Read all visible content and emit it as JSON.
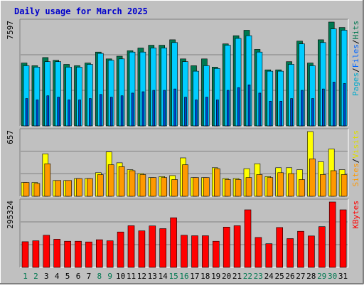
{
  "chart_data": {
    "type": "bar",
    "title": "Daily usage for March 2025",
    "colors": {
      "background": "#c0c0c0",
      "border_light": "#ffffff",
      "border_dark": "#808080",
      "grid": "#808080",
      "title": "#0000cc",
      "pages": "#007850",
      "files": "#00ccff",
      "hits": "#00aa88",
      "sites": "#ff9900",
      "visits": "#ffff00",
      "kbytes": "#ff0000",
      "weekend_label": "#007850",
      "day_label": "#000000"
    },
    "categories": [
      "1",
      "2",
      "3",
      "4",
      "5",
      "6",
      "7",
      "8",
      "9",
      "10",
      "11",
      "12",
      "13",
      "14",
      "15",
      "16",
      "17",
      "18",
      "19",
      "20",
      "21",
      "22",
      "23",
      "24",
      "25",
      "26",
      "27",
      "28",
      "29",
      "30",
      "31"
    ],
    "weekend_days": [
      "1",
      "2",
      "8",
      "9",
      "15",
      "16",
      "22",
      "23",
      "29",
      "30"
    ],
    "panels": [
      {
        "id": "hits",
        "max_label": "7597",
        "legend": [
          {
            "text": "Pages",
            "color": "#00aacc"
          },
          {
            "text": "/",
            "color": "#000000"
          },
          {
            "text": "Files",
            "color": "#0066ff"
          },
          {
            "text": "/",
            "color": "#000000"
          },
          {
            "text": "Hits",
            "color": "#007850"
          }
        ],
        "series": [
          {
            "name": "Hits",
            "values": [
              4600,
              4400,
              5000,
              4800,
              4500,
              4400,
              4600,
              5400,
              4900,
              5100,
              5500,
              5700,
              5900,
              5900,
              6300,
              4900,
              4400,
              4900,
              4300,
              6000,
              6600,
              7000,
              5600,
              4100,
              4100,
              4700,
              6200,
              4600,
              6300,
              7597,
              7200
            ]
          },
          {
            "name": "Files",
            "values": [
              4400,
              4300,
              4700,
              4700,
              4300,
              4300,
              4500,
              5300,
              4800,
              4900,
              5400,
              5400,
              5700,
              5700,
              6100,
              4700,
              4000,
              4400,
              4200,
              5900,
              6400,
              6600,
              5400,
              4000,
              4000,
              4500,
              6000,
              4400,
              6100,
              7100,
              7000
            ]
          },
          {
            "name": "Pages",
            "values": [
              2000,
              1900,
              2200,
              2100,
              1900,
              1900,
              2000,
              2300,
              2100,
              2200,
              2400,
              2500,
              2600,
              2600,
              2700,
              2100,
              1900,
              2100,
              1900,
              2600,
              2800,
              3000,
              2400,
              1800,
              1800,
              2000,
              2600,
              2000,
              2700,
              3200,
              3100
            ]
          }
        ]
      },
      {
        "id": "visits",
        "max_label": "657",
        "legend": [
          {
            "text": "Sites",
            "color": "#ff9900"
          },
          {
            "text": "/",
            "color": "#000000"
          },
          {
            "text": "Visits",
            "color": "#dddd00"
          }
        ],
        "series": [
          {
            "name": "Visits",
            "values": [
              140,
              140,
              430,
              160,
              160,
              180,
              180,
              240,
              450,
              340,
              270,
              230,
              190,
              200,
              210,
              390,
              190,
              190,
              290,
              180,
              180,
              280,
              330,
              200,
              290,
              290,
              270,
              657,
              350,
              480,
              270
            ]
          },
          {
            "name": "Sites",
            "values": [
              140,
              130,
              330,
              160,
              160,
              180,
              180,
              220,
              320,
              300,
              260,
              220,
              190,
              190,
              170,
              320,
              190,
              190,
              280,
              170,
              170,
              190,
              220,
              190,
              240,
              230,
              170,
              380,
              220,
              260,
              220
            ]
          }
        ]
      },
      {
        "id": "kbytes",
        "max_label": "295324",
        "legend": [
          {
            "text": "KBytes",
            "color": "#ff0000"
          }
        ],
        "series": [
          {
            "name": "KBytes",
            "values": [
              116000,
              120000,
              145000,
              127000,
              118000,
              118000,
              115000,
              125000,
              120000,
              160000,
              188000,
              165000,
              187000,
              175000,
              224000,
              145000,
              143000,
              143000,
              118000,
              182000,
              188000,
              260000,
              135000,
              107000,
              180000,
              130000,
              163000,
              142000,
              184000,
              295324,
              260000
            ]
          }
        ]
      }
    ]
  }
}
